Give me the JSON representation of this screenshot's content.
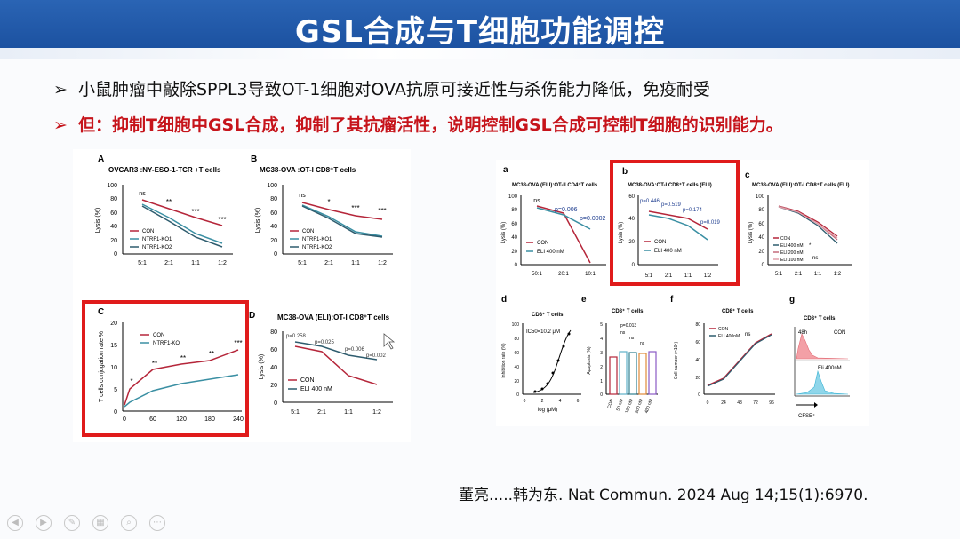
{
  "slide": {
    "title": "GSL合成与T细胞功能调控",
    "bullets": [
      {
        "marker": "➢",
        "text": "小鼠肿瘤中敲除SPPL3导致OT-1细胞对OVA抗原可接近性与杀伤能力降低，免疫耐受"
      },
      {
        "marker": "➢",
        "text": "但：抑制T细胞中GSL合成，抑制了其抗瘤活性，说明控制GSL合成可控制T细胞的识别能力。"
      }
    ],
    "citation": "董亮.....韩为东. Nat Commun. 2024 Aug 14;15(1):6970.",
    "colors": {
      "header": "#1f5aa8",
      "highlight": "#e01b1b",
      "con": "#b5263a",
      "treat1": "#3a8fa3",
      "treat2": "#2e5c6e"
    }
  },
  "panels": {
    "A": {
      "letter": "A",
      "title": "OVCAR3 :NY-ESO-1-TCR +T cells",
      "ylabel": "Lysis (%)",
      "yticks": [
        "0",
        "20",
        "40",
        "60",
        "80",
        "100"
      ],
      "xticks": [
        "5:1",
        "2:1",
        "1:1",
        "1:2"
      ],
      "sig": [
        "ns",
        "**",
        "***",
        "***"
      ],
      "legend": [
        "CON",
        "NTRF1-KO1",
        "NTRF1-KO2"
      ]
    },
    "B": {
      "letter": "B",
      "title": "MC38-OVA :OT-I CD8⁺T cells",
      "ylabel": "Lysis (%)",
      "yticks": [
        "0",
        "20",
        "40",
        "60",
        "80",
        "100"
      ],
      "xticks": [
        "5:1",
        "2:1",
        "1:1",
        "1:2"
      ],
      "sig": [
        "ns",
        "*",
        "***",
        "***"
      ],
      "legend": [
        "CON",
        "NTRF1-KO1",
        "NTRF1-KO2"
      ]
    },
    "C": {
      "letter": "C",
      "title": "",
      "ylabel": "T cells conjugation rate %",
      "yticks": [
        "0",
        "5",
        "10",
        "15",
        "20"
      ],
      "xticks": [
        "0",
        "60",
        "120",
        "180",
        "240"
      ],
      "sig": [
        "*",
        "**",
        "**",
        "**",
        "***"
      ],
      "legend": [
        "CON",
        "NTRF1-KO"
      ]
    },
    "D": {
      "letter": "D",
      "title": "MC38-OVA (ELI):OT-I CD8⁺T cells",
      "ylabel": "Lysis (%)",
      "yticks": [
        "0",
        "20",
        "40",
        "60",
        "80"
      ],
      "xticks": [
        "5:1",
        "2:1",
        "1:1",
        "1:2"
      ],
      "pvals": [
        "p=0.258",
        "p=0.025",
        "p=0.006",
        "p=0.002"
      ],
      "legend": [
        "CON",
        "ELI 400 nM"
      ]
    },
    "a": {
      "letter": "a",
      "title": "MC38-OVA (ELI):OT-II CD4⁺T cells",
      "ylabel": "Lysis (%)",
      "yticks": [
        "0",
        "20",
        "40",
        "60",
        "80",
        "100"
      ],
      "xticks": [
        "50:1",
        "20:1",
        "10:1"
      ],
      "sig": [
        "ns",
        "p=0.006",
        "p=0.0002"
      ],
      "legend": [
        "CON",
        "ELI 400 nM"
      ]
    },
    "b": {
      "letter": "b",
      "title": "MC38-OVA:OT-I CD8⁺T cells (ELI)",
      "ylabel": "Lysis (%)",
      "yticks": [
        "0",
        "20",
        "40",
        "60"
      ],
      "xticks": [
        "5:1",
        "2:1",
        "1:1",
        "1:2"
      ],
      "pvals": [
        "p=0.446",
        "p=0.519",
        "p=0.174",
        "p=0.019"
      ],
      "legend": [
        "CON",
        "ELI 400 nM"
      ]
    },
    "c": {
      "letter": "c",
      "title": "MC38-OVA (ELI):OT-I CD8⁺T cells (ELI)",
      "ylabel": "Lysis (%)",
      "yticks": [
        "0",
        "20",
        "40",
        "60",
        "80",
        "100"
      ],
      "xticks": [
        "5:1",
        "2:1",
        "1:1",
        "1:2"
      ],
      "sig": [
        "*",
        "ns"
      ],
      "legend": [
        "CON",
        "ELI 400 nM",
        "ELI 200 nM",
        "ELI 100 nM"
      ]
    },
    "d": {
      "letter": "d",
      "title": "CD8⁺ T cells",
      "ylabel": "Inhibition rate (%)",
      "xlabel": "log (μM)",
      "yticks": [
        "0",
        "20",
        "40",
        "60",
        "80",
        "100"
      ],
      "xticks": [
        "0",
        "2",
        "4",
        "6"
      ],
      "annotation": "IC50=10.2 μM"
    },
    "e": {
      "letter": "e",
      "title": "CD8⁺ T cells",
      "ylabel": "Apoptosis (%)",
      "yticks": [
        "0",
        "1",
        "2",
        "3",
        "4",
        "5"
      ],
      "xticks": [
        "CON",
        "50 nM",
        "100 nM",
        "200 nM",
        "400 nM"
      ],
      "pvals": [
        "p=0.013",
        "ns",
        "ns",
        "ns"
      ]
    },
    "f": {
      "letter": "f",
      "title": "CD8⁺ T cells",
      "ylabel": "Cell number (×10⁶)",
      "yticks": [
        "0",
        "20",
        "40",
        "60",
        "80"
      ],
      "xticks": [
        "0",
        "24",
        "48",
        "72",
        "96"
      ],
      "sig": [
        "ns"
      ],
      "legend": [
        "CON",
        "ELI 400nM"
      ]
    },
    "g": {
      "letter": "g",
      "title": "CD8⁺ T cells",
      "labels": [
        "48h",
        "CON",
        "Eli 400nM"
      ],
      "xlabel": "CFSE⁺"
    }
  }
}
